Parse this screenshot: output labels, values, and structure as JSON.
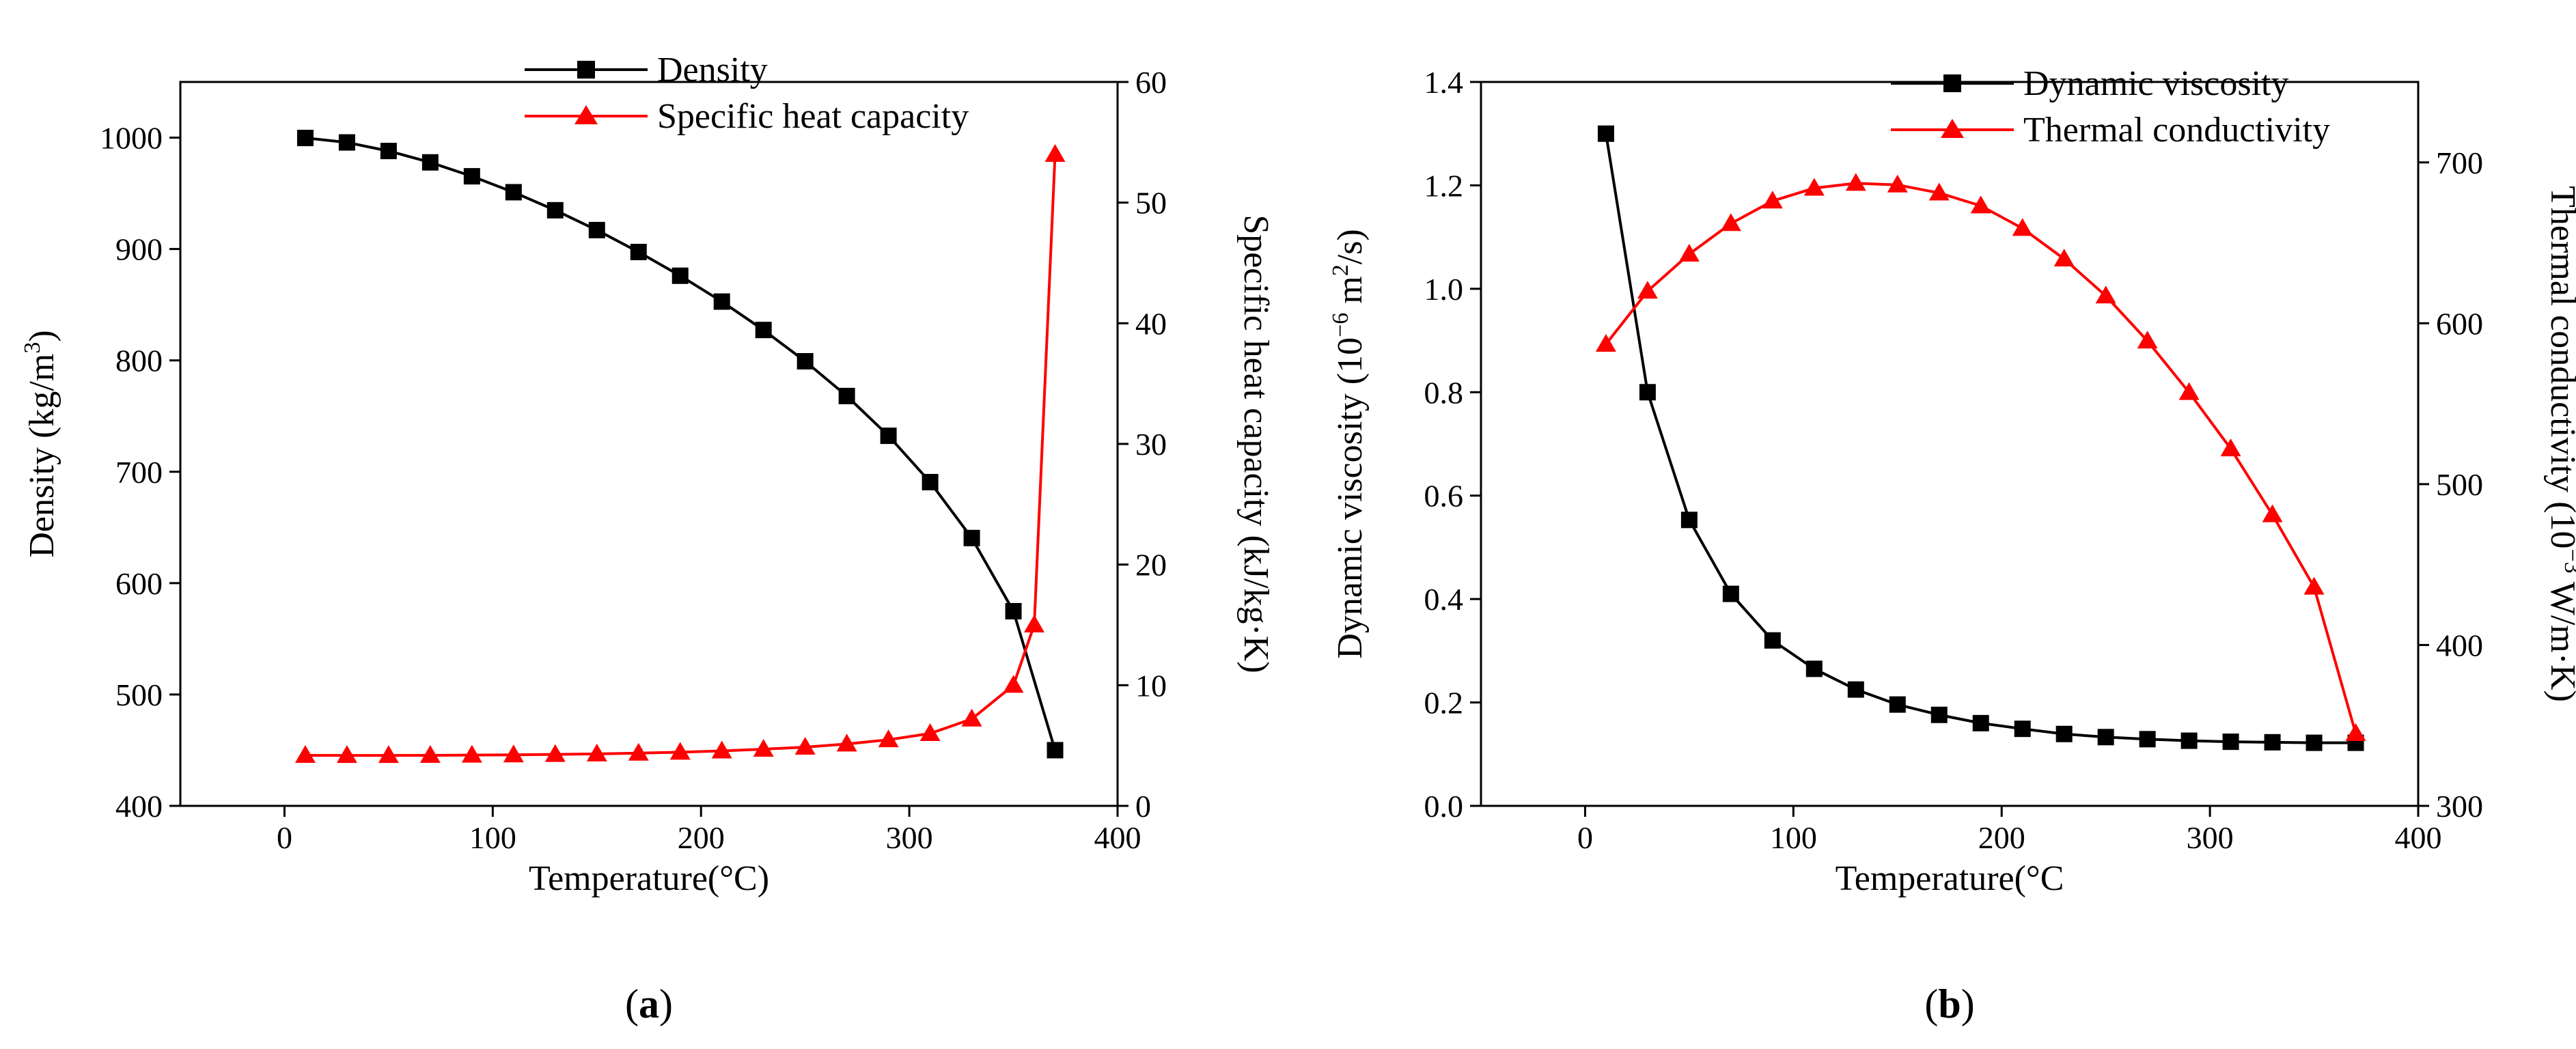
{
  "chart_data": [
    {
      "type": "line",
      "panel_label": "a",
      "xlabel": "Temperature(°C)",
      "xlim": [
        -50,
        400
      ],
      "xticks": [
        0,
        100,
        200,
        300,
        400
      ],
      "ylabel_left": "Density (kg/m³)",
      "ylabel_left_main": "Density (kg/m",
      "ylabel_left_sup": "3",
      "ylabel_left_tail": ")",
      "ylim_left": [
        400,
        1050
      ],
      "yticks_left": [
        400,
        500,
        600,
        700,
        800,
        900,
        1000
      ],
      "ylabel_right": "Specific heat capacity (kJ/kg·K)",
      "ylim_right": [
        0,
        60
      ],
      "yticks_right": [
        0,
        10,
        20,
        30,
        40,
        50,
        60
      ],
      "legend_position": "top-center",
      "series": [
        {
          "name": "Density",
          "axis": "left",
          "color": "#000000",
          "marker": "square",
          "x": [
            10,
            30,
            50,
            70,
            90,
            110,
            130,
            150,
            170,
            190,
            210,
            230,
            250,
            270,
            290,
            310,
            330,
            350,
            370
          ],
          "values": [
            999.7,
            995.7,
            988.0,
            977.8,
            965.3,
            951.0,
            934.8,
            917.0,
            897.3,
            876.0,
            852.8,
            827.3,
            799.2,
            768.0,
            732.3,
            690.7,
            640.5,
            574.8,
            450.0
          ]
        },
        {
          "name": "Specific heat capacity",
          "axis": "right",
          "color": "#ff0000",
          "marker": "triangle",
          "x": [
            10,
            30,
            50,
            70,
            90,
            110,
            130,
            150,
            170,
            190,
            210,
            230,
            250,
            270,
            290,
            310,
            330,
            350,
            360,
            370
          ],
          "values": [
            4.19,
            4.18,
            4.18,
            4.19,
            4.21,
            4.23,
            4.27,
            4.31,
            4.37,
            4.45,
            4.56,
            4.7,
            4.87,
            5.13,
            5.48,
            6.0,
            7.2,
            10.0,
            15.0,
            54.0
          ]
        }
      ]
    },
    {
      "type": "line",
      "panel_label": "b",
      "xlabel": "Temperature(°C",
      "xlim": [
        -50,
        400
      ],
      "xticks": [
        0,
        100,
        200,
        300,
        400
      ],
      "ylabel_left": "Dynamic viscosity (10⁻⁶ m²/s)",
      "ylabel_left_main": "Dynamic viscosity (10",
      "ylabel_left_sup": "−6",
      "ylabel_left_mid": " m",
      "ylabel_left_sup2": "2",
      "ylabel_left_tail": "/s)",
      "ylim_left": [
        0,
        1.4
      ],
      "yticks_left": [
        "0.0",
        "0.2",
        "0.4",
        "0.6",
        "0.8",
        "1.0",
        "1.2",
        "1.4"
      ],
      "ylabel_right": "Thermal conductivity (10⁻³ W/m·K)",
      "ylabel_right_main": "Thermal conductivity (10",
      "ylabel_right_sup": "−3",
      "ylabel_right_tail": " W/m·K)",
      "ylim_right": [
        300,
        750
      ],
      "yticks_right": [
        300,
        400,
        500,
        600,
        700
      ],
      "legend_position": "top-right",
      "series": [
        {
          "name": "Dynamic viscosity",
          "axis": "left",
          "color": "#000000",
          "marker": "square",
          "x": [
            10,
            30,
            50,
            70,
            90,
            110,
            130,
            150,
            170,
            190,
            210,
            230,
            250,
            270,
            290,
            310,
            330,
            350,
            370
          ],
          "values": [
            1.3,
            0.8,
            0.553,
            0.41,
            0.32,
            0.265,
            0.225,
            0.196,
            0.176,
            0.16,
            0.149,
            0.139,
            0.133,
            0.129,
            0.126,
            0.124,
            0.123,
            0.122,
            0.122
          ]
        },
        {
          "name": "Thermal conductivity",
          "axis": "right",
          "color": "#ff0000",
          "marker": "triangle",
          "x": [
            10,
            30,
            50,
            70,
            90,
            110,
            130,
            150,
            170,
            190,
            210,
            230,
            250,
            270,
            290,
            310,
            330,
            350,
            370
          ],
          "values": [
            587,
            620,
            643,
            662,
            676,
            684,
            687,
            686,
            681,
            673,
            659,
            640,
            617,
            589,
            557,
            522,
            481,
            436,
            345
          ]
        }
      ]
    }
  ]
}
